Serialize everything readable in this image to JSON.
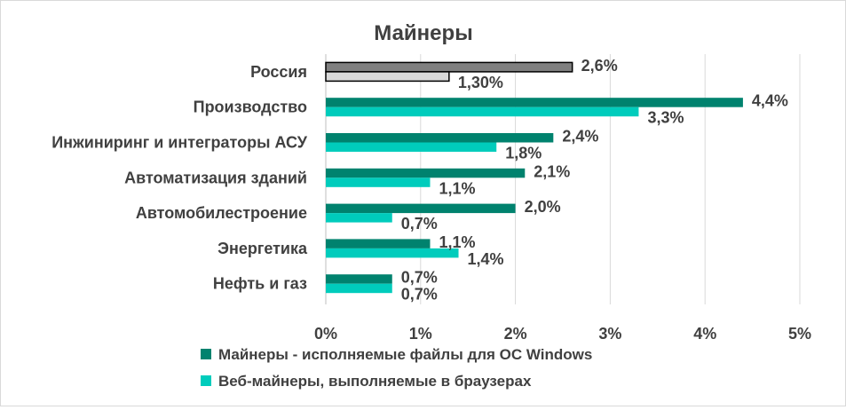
{
  "chart_data": {
    "type": "bar",
    "orientation": "horizontal",
    "title": "Майнеры",
    "xlabel": "",
    "ylabel": "",
    "xlim": [
      0,
      5
    ],
    "ticks": [
      "0%",
      "1%",
      "2%",
      "3%",
      "4%",
      "5%"
    ],
    "grid": true,
    "legend_position": "bottom",
    "categories": [
      "Россия",
      "Производство",
      "Инжиниринг и интеграторы АСУ",
      "Автоматизация зданий",
      "Автомобилестроение",
      "Энергетика",
      "Нефть и газ"
    ],
    "series": [
      {
        "name": "Майнеры - исполняемые файлы для ОС Windows",
        "color": "#00826e",
        "values": [
          2.6,
          4.4,
          2.4,
          2.1,
          2.0,
          1.1,
          0.7
        ],
        "labels": [
          "2,6%",
          "4,4%",
          "2,4%",
          "2,1%",
          "2,0%",
          "1,1%",
          "0,7%"
        ]
      },
      {
        "name": "Веб-майнеры, выполняемые в браузерах",
        "color": "#00ccbc",
        "values": [
          1.3,
          3.3,
          1.8,
          1.1,
          0.7,
          1.4,
          0.7
        ],
        "labels": [
          "1,30%",
          "3,3%",
          "1,8%",
          "1,1%",
          "0,7%",
          "1,4%",
          "0,7%"
        ]
      }
    ],
    "highlight": {
      "category_index": 0,
      "colors": [
        "#808080",
        "#d9d9d9"
      ],
      "stroke": "#000000"
    }
  }
}
